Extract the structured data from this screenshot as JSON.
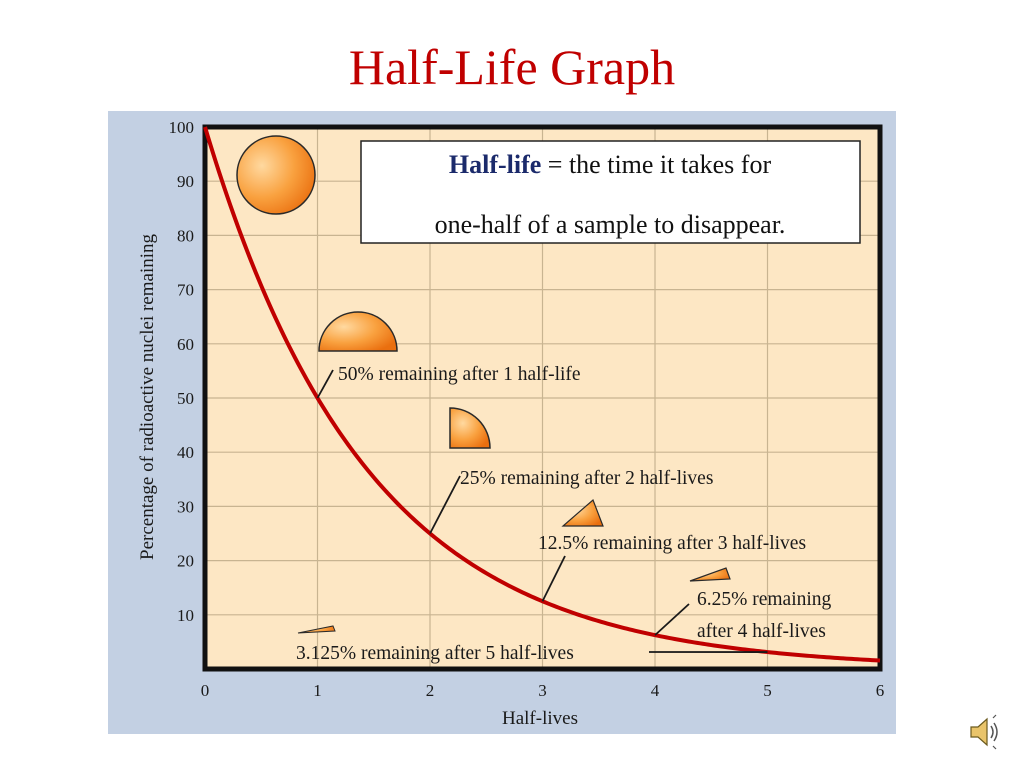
{
  "slide": {
    "title": "Half-Life Graph"
  },
  "definition_box": {
    "term": "Half-life",
    "line1_rest": " = the time it takes for",
    "line2": "one-half of a sample to disappear."
  },
  "colors": {
    "title": "#c00000",
    "curve": "#c00000",
    "plot_background": "#fde7c4",
    "outer_panel": "#c3d0e3",
    "gridline": "#c8b491",
    "frame": "#111111",
    "shape_light": "#ffcf8a",
    "shape_dark": "#f07f14"
  },
  "icons": {
    "speaker": "speaker-icon"
  },
  "chart_data": {
    "type": "line",
    "title": "",
    "xlabel": "Half-lives",
    "ylabel": "Percentage of radioactive nuclei remaining",
    "xlim": [
      0,
      6
    ],
    "ylim": [
      0,
      100
    ],
    "grid": true,
    "x_ticks": [
      "0",
      "1",
      "2",
      "3",
      "4",
      "5",
      "6"
    ],
    "y_ticks": [
      "10",
      "20",
      "30",
      "40",
      "50",
      "60",
      "70",
      "80",
      "90",
      "100"
    ],
    "series": [
      {
        "x": [
          0,
          0.5,
          1,
          1.5,
          2,
          2.5,
          3,
          3.5,
          4,
          4.5,
          5,
          5.5,
          6
        ],
        "values": [
          100,
          70.71,
          50,
          35.36,
          25,
          17.68,
          12.5,
          8.84,
          6.25,
          4.42,
          3.125,
          2.21,
          1.5625
        ]
      }
    ],
    "annotations": [
      {
        "x": 1,
        "y": 50,
        "lines": [
          "50% remaining after 1 half-life"
        ]
      },
      {
        "x": 2,
        "y": 25,
        "lines": [
          "25% remaining after 2 half-lives"
        ]
      },
      {
        "x": 3,
        "y": 12.5,
        "lines": [
          "12.5% remaining after 3 half-lives"
        ]
      },
      {
        "x": 4,
        "y": 6.25,
        "lines": [
          "6.25% remaining",
          "after 4 half-lives"
        ]
      },
      {
        "x": 5,
        "y": 3.125,
        "lines": [
          "3.125% remaining after 5 half-lives"
        ]
      }
    ]
  }
}
